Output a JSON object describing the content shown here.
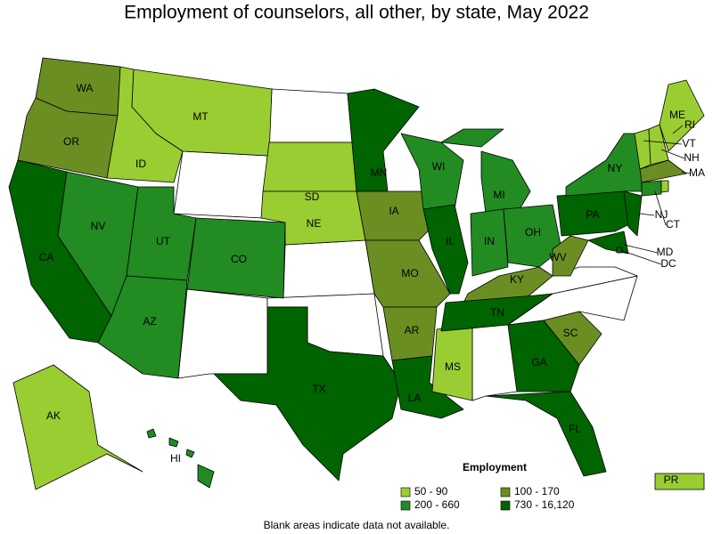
{
  "title": "Employment of counselors, all other, by state, May 2022",
  "states": [
    {
      "label": "WA",
      "color": "#6b8e23"
    },
    {
      "label": "OR",
      "color": "#6b8e23"
    },
    {
      "label": "CA",
      "color": "#006400"
    },
    {
      "label": "NV",
      "color": "#228b22"
    },
    {
      "label": "ID",
      "color": "#9acd32"
    },
    {
      "label": "MT",
      "color": "#9acd32"
    },
    {
      "label": "UT",
      "color": "#228b22"
    },
    {
      "label": "AZ",
      "color": "#228b22"
    },
    {
      "label": "CO",
      "color": "#228b22"
    },
    {
      "label": "SD",
      "color": "#9acd32"
    },
    {
      "label": "NE",
      "color": "#9acd32"
    },
    {
      "label": "TX",
      "color": "#006400"
    },
    {
      "label": "MN",
      "color": "#006400"
    },
    {
      "label": "IA",
      "color": "#6b8e23"
    },
    {
      "label": "MO",
      "color": "#6b8e23"
    },
    {
      "label": "AR",
      "color": "#6b8e23"
    },
    {
      "label": "LA",
      "color": "#006400"
    },
    {
      "label": "WI",
      "color": "#228b22"
    },
    {
      "label": "IL",
      "color": "#006400"
    },
    {
      "label": "MS",
      "color": "#9acd32"
    },
    {
      "label": "MI",
      "color": "#228b22"
    },
    {
      "label": "IN",
      "color": "#228b22"
    },
    {
      "label": "OH",
      "color": "#228b22"
    },
    {
      "label": "KY",
      "color": "#6b8e23"
    },
    {
      "label": "TN",
      "color": "#006400"
    },
    {
      "label": "GA",
      "color": "#006400"
    },
    {
      "label": "FL",
      "color": "#006400"
    },
    {
      "label": "SC",
      "color": "#6b8e23"
    },
    {
      "label": "WV",
      "color": "#6b8e23"
    },
    {
      "label": "PA",
      "color": "#006400"
    },
    {
      "label": "NY",
      "color": "#228b22"
    },
    {
      "label": "NJ",
      "color": "#006400"
    },
    {
      "label": "MD",
      "color": "#006400"
    },
    {
      "label": "DC",
      "color": "#006400"
    },
    {
      "label": "VT",
      "color": "#9acd32"
    },
    {
      "label": "NH",
      "color": "#9acd32"
    },
    {
      "label": "ME",
      "color": "#9acd32"
    },
    {
      "label": "MA",
      "color": "#6b8e23"
    },
    {
      "label": "CT",
      "color": "#228b22"
    },
    {
      "label": "RI",
      "color": "#9acd32"
    },
    {
      "label": "AK",
      "color": "#9acd32"
    },
    {
      "label": "HI",
      "color": "#228b22"
    },
    {
      "label": "PR",
      "color": "#9acd32"
    }
  ],
  "legend": {
    "title": "Employment",
    "items": [
      {
        "label": "50 - 90",
        "color": "#9acd32"
      },
      {
        "label": "100 - 170",
        "color": "#6b8e23"
      },
      {
        "label": "200 - 660",
        "color": "#228b22"
      },
      {
        "label": "730 - 16,120",
        "color": "#006400"
      }
    ]
  },
  "note": "Blank areas indicate data not available."
}
